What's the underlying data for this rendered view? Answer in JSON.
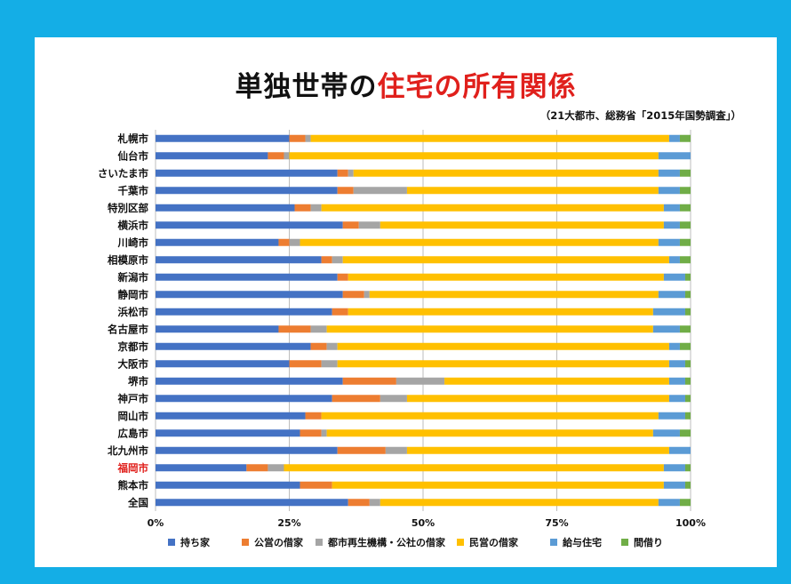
{
  "title_part1": "単独世帯の",
  "title_part2": "住宅の所有関係",
  "subtitle": "（21大都市、総務省「2015年国勢調査」）",
  "colors": {
    "background": "#14aee6",
    "series": [
      "#4472c4",
      "#ed7d31",
      "#a5a5a5",
      "#ffc000",
      "#5b9bd5",
      "#70ad47"
    ],
    "highlight_label": "#e0201c"
  },
  "chart_data": {
    "type": "bar",
    "orientation": "horizontal",
    "stacked": true,
    "xlim": [
      0,
      100
    ],
    "xticks": [
      "0%",
      "25%",
      "50%",
      "75%",
      "100%"
    ],
    "grid": "vertical",
    "legend_position": "bottom",
    "highlighted_category": "福岡市",
    "categories": [
      "札幌市",
      "仙台市",
      "さいたま市",
      "千葉市",
      "特別区部",
      "横浜市",
      "川崎市",
      "相模原市",
      "新潟市",
      "静岡市",
      "浜松市",
      "名古屋市",
      "京都市",
      "大阪市",
      "堺市",
      "神戸市",
      "岡山市",
      "広島市",
      "北九州市",
      "福岡市",
      "熊本市",
      "全国"
    ],
    "series": [
      {
        "name": "持ち家",
        "values": [
          25,
          21,
          34,
          34,
          26,
          35,
          23,
          31,
          34,
          35,
          33,
          23,
          29,
          25,
          35,
          33,
          28,
          27,
          34,
          17,
          27,
          36
        ]
      },
      {
        "name": "公営の借家",
        "values": [
          3,
          3,
          2,
          3,
          3,
          3,
          2,
          2,
          2,
          4,
          3,
          6,
          3,
          6,
          10,
          9,
          3,
          4,
          9,
          4,
          6,
          4
        ]
      },
      {
        "name": "都市再生機構・公社の借家",
        "values": [
          1,
          1,
          1,
          10,
          2,
          4,
          2,
          2,
          0,
          1,
          0,
          3,
          2,
          3,
          9,
          5,
          0,
          1,
          4,
          3,
          0,
          2
        ]
      },
      {
        "name": "民営の借家",
        "values": [
          67,
          69,
          57,
          47,
          64,
          53,
          67,
          61,
          59,
          54,
          57,
          61,
          62,
          62,
          42,
          49,
          63,
          61,
          49,
          71,
          62,
          52
        ]
      },
      {
        "name": "給与住宅",
        "values": [
          2,
          6,
          4,
          4,
          3,
          3,
          4,
          2,
          4,
          5,
          6,
          5,
          2,
          3,
          3,
          3,
          5,
          5,
          4,
          4,
          4,
          4
        ]
      },
      {
        "name": "間借り",
        "values": [
          2,
          0,
          2,
          2,
          2,
          2,
          2,
          2,
          1,
          1,
          1,
          2,
          2,
          1,
          1,
          1,
          1,
          2,
          0,
          1,
          1,
          2
        ]
      }
    ]
  }
}
